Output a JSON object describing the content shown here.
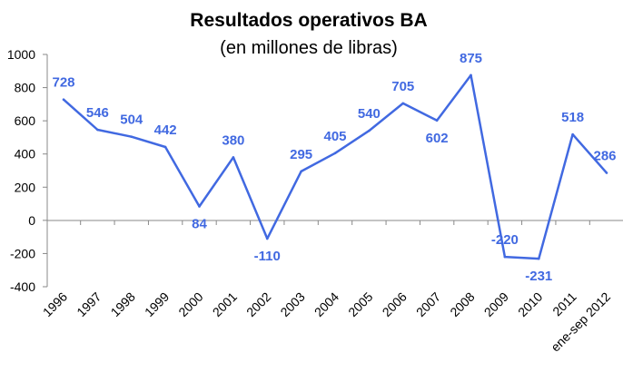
{
  "chart_data": {
    "type": "line",
    "title": "Resultados operativos BA",
    "subtitle": "(en millones de libras)",
    "xlabel": "",
    "ylabel": "",
    "categories": [
      "1996",
      "1997",
      "1998",
      "1999",
      "2000",
      "2001",
      "2002",
      "2003",
      "2004",
      "2005",
      "2006",
      "2007",
      "2008",
      "2009",
      "2010",
      "2011",
      "ene-sep 2012"
    ],
    "series": [
      {
        "values": [
          728,
          546,
          504,
          442,
          84,
          380,
          -110,
          295,
          405,
          540,
          705,
          602,
          875,
          -220,
          -231,
          518,
          286
        ]
      }
    ],
    "data_labels": [
      "728",
      "546",
      "504",
      "442",
      "84",
      "380",
      "-110",
      "295",
      "405",
      "540",
      "705",
      "602",
      "875",
      "-220",
      "-231",
      "518",
      "286"
    ],
    "ylim": [
      -400,
      1000
    ],
    "yticks": [
      -400,
      -200,
      0,
      200,
      400,
      600,
      800,
      1000
    ],
    "ytick_labels": [
      "-400",
      "-200",
      "0",
      "200",
      "400",
      "600",
      "800",
      "1000"
    ],
    "grid": false,
    "legend": "none",
    "line_color": "#4169E1",
    "label_color": "#4169E1"
  }
}
